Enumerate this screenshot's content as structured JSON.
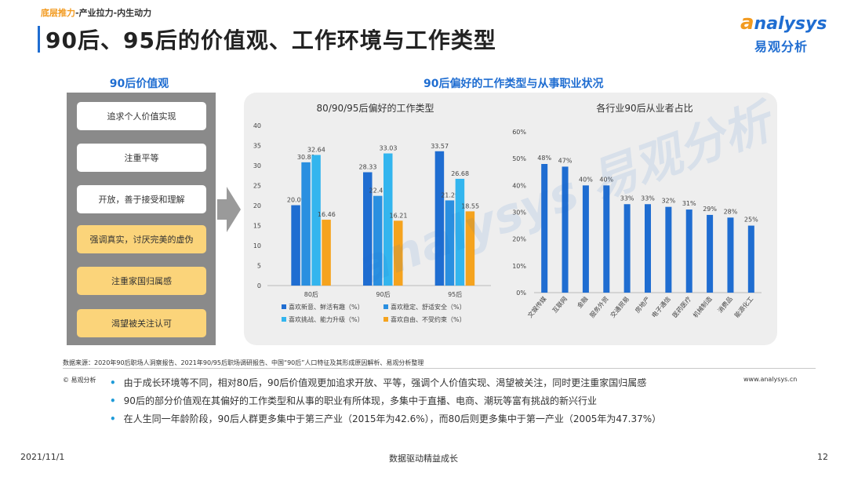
{
  "header": {
    "breadcrumb_accent": "底层推力",
    "breadcrumb_rest": "-产业拉力-内生动力",
    "title": "90后、95后的价值观、工作环境与工作类型"
  },
  "logo": {
    "en_a": "a",
    "en_rest": "nalysys",
    "cn": "易观分析"
  },
  "left": {
    "heading": "90后价值观",
    "items": [
      {
        "label": "追求个人价值实现",
        "style": "white"
      },
      {
        "label": "注重平等",
        "style": "white"
      },
      {
        "label": "开放，善于接受和理解",
        "style": "white"
      },
      {
        "label": "强调真实，讨厌完美的虚伪",
        "style": "yellow"
      },
      {
        "label": "注重家国归属感",
        "style": "yellow"
      },
      {
        "label": "渴望被关注认可",
        "style": "yellow"
      }
    ]
  },
  "right": {
    "heading": "90后偏好的工作类型与从事职业状况"
  },
  "watermark": "analysys 易观分析",
  "chart_data": [
    {
      "type": "bar",
      "title": "80/90/95后偏好的工作类型",
      "categories": [
        "80后",
        "90后",
        "95后"
      ],
      "ylim": [
        0,
        40
      ],
      "yticks": [
        0,
        5,
        10,
        15,
        20,
        25,
        30,
        35,
        40
      ],
      "legend_position": "bottom",
      "series": [
        {
          "name": "喜欢新意、鲜活有趣（%）",
          "color": "#1f6dd1",
          "values": [
            20.09,
            28.33,
            33.57
          ]
        },
        {
          "name": "喜欢稳定、舒适安全（%）",
          "color": "#2a8fe0",
          "values": [
            30.81,
            22.42,
            21.29
          ]
        },
        {
          "name": "喜欢挑战、能力升级（%）",
          "color": "#33b5ee",
          "values": [
            32.64,
            33.03,
            26.68
          ]
        },
        {
          "name": "喜欢自由、不受约束（%）",
          "color": "#f5a31e",
          "values": [
            16.46,
            16.21,
            18.55
          ]
        }
      ]
    },
    {
      "type": "bar",
      "title": "各行业90后从业者占比",
      "categories": [
        "文娱传媒",
        "互联网",
        "金融",
        "服务外贸",
        "交通贸易",
        "房地产",
        "电子通信",
        "医药医疗",
        "机械制造",
        "消费品",
        "能源化工"
      ],
      "values": [
        48,
        47,
        40,
        40,
        33,
        33,
        32,
        31,
        29,
        28,
        25
      ],
      "value_labels": [
        "48%",
        "47%",
        "40%",
        "40%",
        "33%",
        "33%",
        "32%",
        "31%",
        "29%",
        "28%",
        "25%"
      ],
      "ylim": [
        0,
        60
      ],
      "yticks": [
        "0%",
        "10%",
        "20%",
        "30%",
        "40%",
        "50%",
        "60%"
      ],
      "color": "#1f6dd1"
    }
  ],
  "source": "数据来源：2020年90后职场人洞察报告、2021年90/95后职场调研报告、中国“90后”人口特征及其形成原因解析、易观分析整理",
  "copyright": "© 易观分析",
  "website": "www.analysys.cn",
  "bullets": [
    "由于成长环境等不同，相对80后，90后价值观更加追求开放、平等，强调个人价值实现、渴望被关注，同时更注重家国归属感",
    "90后的部分价值观在其偏好的工作类型和从事的职业有所体现，多集中于直播、电商、潮玩等富有挑战的新兴行业",
    "在人生同一年龄阶段，90后人群更多集中于第三产业（2015年为42.6%），而80后则更多集中于第一产业（2005年为47.37%）"
  ],
  "footer": {
    "date": "2021/11/1",
    "center": "数据驱动精益成长",
    "page": "12"
  }
}
